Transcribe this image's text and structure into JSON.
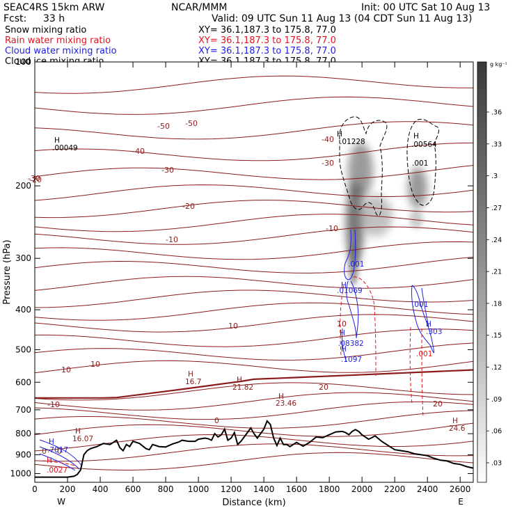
{
  "header": {
    "model": "SEAC4RS 15km ARW",
    "org": "NCAR/MMM",
    "init": "Init: 00 UTC Sat 10 Aug 13",
    "fcst_label": "Fcst:",
    "fcst_value": "33 h",
    "valid": "Valid: 09 UTC Sun 11 Aug 13 (04 CDT Sun 11 Aug 13)"
  },
  "fields": [
    {
      "name": "Snow mixing ratio",
      "xy": "XY=  36.1,187.3 to 175.8, 77.0",
      "color": "#000000"
    },
    {
      "name": "Rain water mixing ratio",
      "xy": "XY=  36.1,187.3 to 175.8, 77.0",
      "color": "#e0141e"
    },
    {
      "name": "Cloud water mixing ratio",
      "xy": "XY=  36.1,187.3 to 175.8, 77.0",
      "color": "#1e1ee0"
    },
    {
      "name": "Cloud ice mixing ratio",
      "xy": "XY=  36.1,187.3 to 175.8, 77.0",
      "color": "#000000"
    }
  ],
  "colorbar": {
    "unit": "g kg⁻¹",
    "ticks": [
      ".36",
      ".33",
      ".3",
      ".27",
      ".24",
      ".21",
      ".18",
      ".15",
      ".12",
      ".09",
      ".06",
      ".03"
    ]
  },
  "chart_data": {
    "type": "contour",
    "xlabel": "Distance (km)",
    "ylabel": "Pressure (hPa)",
    "xlim": [
      0,
      2680
    ],
    "ylim": [
      1050,
      100
    ],
    "y_scale": "log",
    "x_ticks": [
      "0",
      "200",
      "400",
      "600",
      "800",
      "1000",
      "1200",
      "1400",
      "1600",
      "1800",
      "2000",
      "2200",
      "2400",
      "2600"
    ],
    "y_ticks": [
      "100",
      "200",
      "300",
      "400",
      "500",
      "600",
      "700",
      "800",
      "900",
      "1000"
    ],
    "end_labels": {
      "left": "W",
      "right": "E"
    },
    "terrain": {
      "x": [
        0,
        100,
        200,
        240,
        260,
        280,
        300,
        320,
        340,
        380,
        420,
        460,
        500,
        520,
        540,
        560,
        580,
        600,
        640,
        680,
        700,
        720,
        760,
        800,
        840,
        880,
        900,
        940,
        980,
        1000,
        1040,
        1060,
        1080,
        1100,
        1120,
        1140,
        1160,
        1180,
        1200,
        1220,
        1240,
        1260,
        1280,
        1300,
        1320,
        1340,
        1360,
        1380,
        1400,
        1420,
        1440,
        1460,
        1480,
        1500,
        1520,
        1540,
        1560,
        1600,
        1640,
        1680,
        1720,
        1760,
        1800,
        1840,
        1880,
        1900,
        1920,
        1940,
        1960,
        1980,
        2000,
        2040,
        2060,
        2080,
        2120,
        2160,
        2200,
        2240,
        2280,
        2320,
        2360,
        2400,
        2440,
        2480,
        2520,
        2560,
        2600,
        2640,
        2680
      ],
      "p": [
        1020,
        1020,
        1020,
        1015,
        1005,
        980,
        900,
        880,
        870,
        860,
        845,
        850,
        830,
        865,
        880,
        850,
        860,
        835,
        845,
        870,
        875,
        850,
        860,
        862,
        848,
        838,
        830,
        835,
        835,
        825,
        820,
        823,
        830,
        800,
        815,
        805,
        780,
        830,
        820,
        795,
        850,
        835,
        815,
        795,
        775,
        800,
        820,
        800,
        780,
        745,
        760,
        820,
        855,
        820,
        850,
        850,
        860,
        840,
        858,
        840,
        815,
        818,
        805,
        792,
        790,
        795,
        805,
        790,
        782,
        790,
        805,
        825,
        818,
        810,
        835,
        855,
        875,
        880,
        885,
        895,
        900,
        905,
        918,
        928,
        932,
        945,
        950,
        962,
        970
      ]
    },
    "temperature_contours": {
      "unit": "°C",
      "labels": [
        "0",
        "0",
        "0",
        "-10",
        "-10",
        "-20",
        "-20",
        "-30",
        "-30",
        "-30",
        "-40",
        "-40",
        "-50",
        "-50",
        "10",
        "10",
        "10",
        "-10",
        "10",
        "20",
        "20"
      ]
    },
    "maxima_labels": [
      {
        "text": "H",
        "color": "#000000"
      },
      {
        "text": ".00049",
        "color": "#000000"
      },
      {
        "text": "H",
        "color": "#000000"
      },
      {
        "text": ".01228",
        "color": "#000000"
      },
      {
        "text": "H",
        "color": "#000000"
      },
      {
        "text": ".00564",
        "color": "#000000"
      },
      {
        "text": ".001",
        "color": "#000000"
      },
      {
        "text": ".001",
        "color": "#1e1ee0"
      },
      {
        "text": "H",
        "color": "#1e1ee0"
      },
      {
        "text": ".01069",
        "color": "#1e1ee0"
      },
      {
        "text": "H",
        "color": "#1e1ee0"
      },
      {
        "text": ".08382",
        "color": "#1e1ee0"
      },
      {
        "text": "H",
        "color": "#1e1ee0"
      },
      {
        "text": ".1097",
        "color": "#1e1ee0"
      },
      {
        "text": ".001",
        "color": "#1e1ee0"
      },
      {
        "text": "H",
        "color": "#1e1ee0"
      },
      {
        "text": ".303",
        "color": "#1e1ee0"
      },
      {
        "text": ".001",
        "color": "#e0141e"
      },
      {
        "text": "H",
        "color": "#8b1a1a"
      },
      {
        "text": "16.7",
        "color": "#8b1a1a"
      },
      {
        "text": "H",
        "color": "#8b1a1a"
      },
      {
        "text": "21.82",
        "color": "#8b1a1a"
      },
      {
        "text": "H",
        "color": "#8b1a1a"
      },
      {
        "text": "23.46",
        "color": "#8b1a1a"
      },
      {
        "text": "H",
        "color": "#8b1a1a"
      },
      {
        "text": "24.6",
        "color": "#8b1a1a"
      },
      {
        "text": "H",
        "color": "#8b1a1a"
      },
      {
        "text": "16.07",
        "color": "#8b1a1a"
      },
      {
        "text": "H",
        "color": "#1e1ee0"
      },
      {
        "text": ".7017",
        "color": "#1e1ee0"
      },
      {
        "text": "H",
        "color": "#e0141e"
      },
      {
        "text": ".0027",
        "color": "#e0141e"
      }
    ]
  }
}
